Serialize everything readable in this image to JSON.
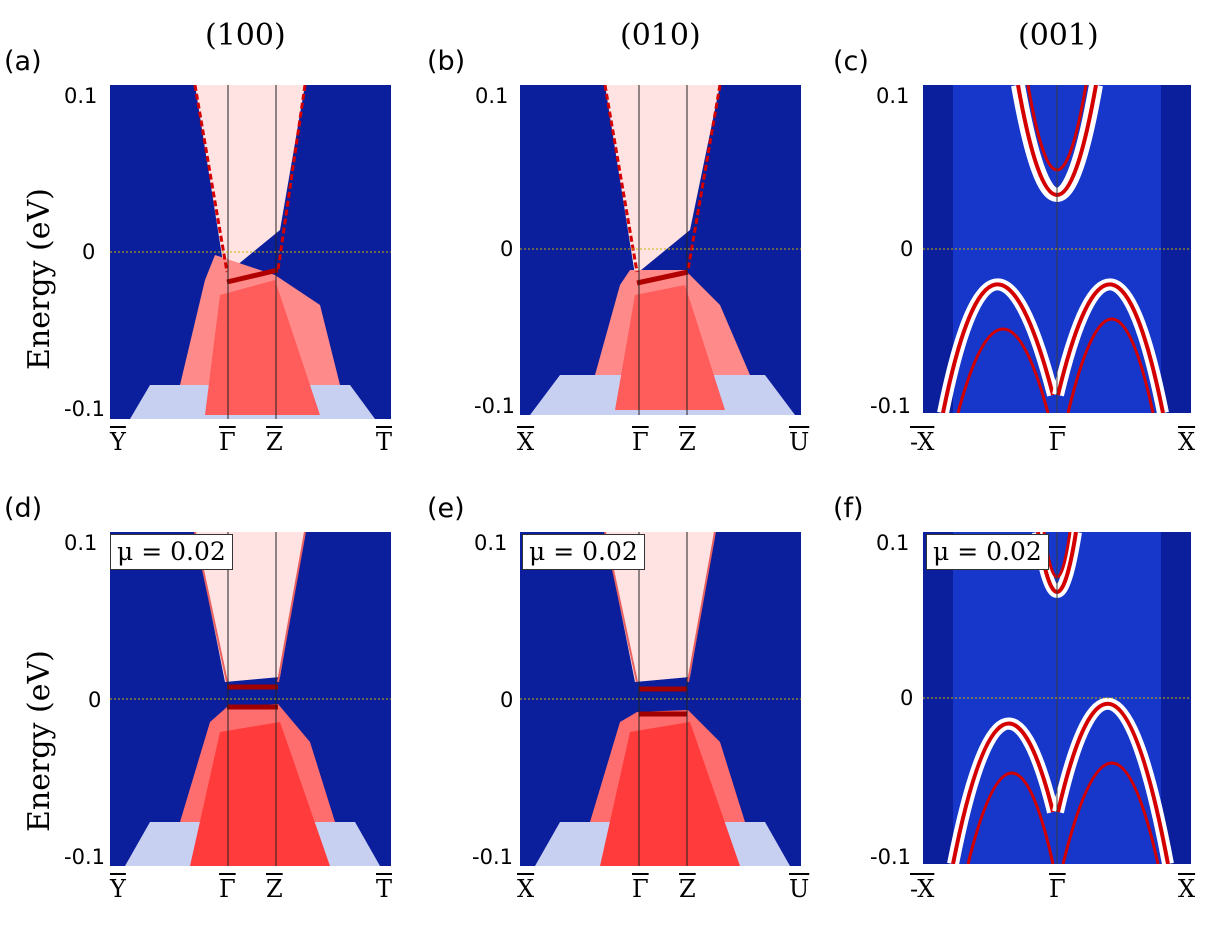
{
  "column_titles": [
    "(100)",
    "(010)",
    "(001)"
  ],
  "y_axis_label": "Energy  (eV)",
  "y_ticks": [
    "0.1",
    "0",
    "-0.1"
  ],
  "colors": {
    "low": "#0b1e9c",
    "mid": "#ffffff",
    "high": "#d40000",
    "fermi_line": "#c8b400"
  },
  "chart_data": [
    {
      "type": "heatmap",
      "panel": "(a)",
      "surface": "(100)",
      "mu": null,
      "xticks": [
        "Y",
        "Γ",
        "Z",
        "T"
      ],
      "ylim": [
        -0.1,
        0.1
      ],
      "yticks": [
        0.1,
        0,
        -0.1
      ]
    },
    {
      "type": "heatmap",
      "panel": "(b)",
      "surface": "(010)",
      "mu": null,
      "xticks": [
        "X",
        "Γ",
        "Z",
        "U"
      ],
      "ylim": [
        -0.1,
        0.1
      ],
      "yticks": [
        0.1,
        0,
        -0.1
      ]
    },
    {
      "type": "heatmap",
      "panel": "(c)",
      "surface": "(001)",
      "mu": null,
      "xticks": [
        "-X",
        "Γ",
        "X"
      ],
      "ylim": [
        -0.1,
        0.1
      ],
      "yticks": [
        0.1,
        0,
        -0.1
      ]
    },
    {
      "type": "heatmap",
      "panel": "(d)",
      "surface": "(100)",
      "mu": "μ = 0.02",
      "xticks": [
        "Y",
        "Γ",
        "Z",
        "T"
      ],
      "ylim": [
        -0.1,
        0.1
      ],
      "yticks": [
        0.1,
        0,
        -0.1
      ]
    },
    {
      "type": "heatmap",
      "panel": "(e)",
      "surface": "(010)",
      "mu": "μ = 0.02",
      "xticks": [
        "X",
        "Γ",
        "Z",
        "U"
      ],
      "ylim": [
        -0.1,
        0.1
      ],
      "yticks": [
        0.1,
        0,
        -0.1
      ]
    },
    {
      "type": "heatmap",
      "panel": "(f)",
      "surface": "(001)",
      "mu": "μ = 0.02",
      "xticks": [
        "-X",
        "Γ",
        "X"
      ],
      "ylim": [
        -0.1,
        0.1
      ],
      "yticks": [
        0.1,
        0,
        -0.1
      ]
    }
  ]
}
